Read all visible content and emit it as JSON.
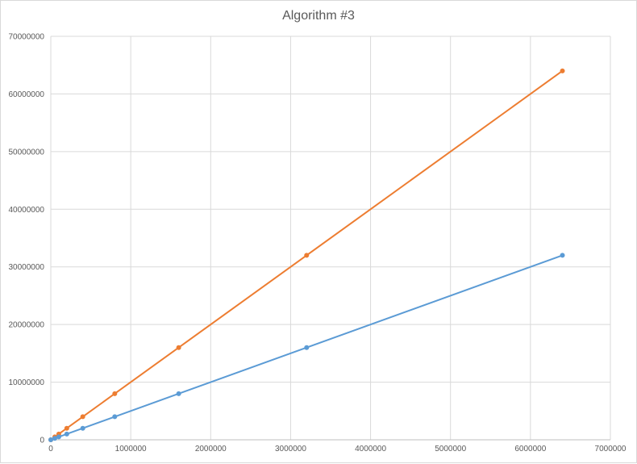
{
  "chart_data": {
    "type": "scatter",
    "title": "Algorithm #3",
    "xlabel": "",
    "ylabel": "",
    "xlim": [
      0,
      7000000
    ],
    "ylim": [
      0,
      70000000
    ],
    "x_ticks": [
      "0",
      "1000000",
      "2000000",
      "3000000",
      "4000000",
      "5000000",
      "6000000",
      "7000000"
    ],
    "y_ticks": [
      "0",
      "10000000",
      "20000000",
      "30000000",
      "40000000",
      "50000000",
      "60000000",
      "70000000"
    ],
    "grid": true,
    "legend": "none",
    "series": [
      {
        "color": "#ed7d31",
        "x": [
          0,
          50000,
          100000,
          200000,
          400000,
          800000,
          1600000,
          3200000,
          6400000
        ],
        "y": [
          0,
          500000,
          1000000,
          2000000,
          4000000,
          8000000,
          16000000,
          32000000,
          64000000
        ]
      },
      {
        "color": "#5b9bd5",
        "x": [
          0,
          50000,
          100000,
          200000,
          400000,
          800000,
          1600000,
          3200000,
          6400000
        ],
        "y": [
          0,
          250000,
          500000,
          1000000,
          2000000,
          4000000,
          8000000,
          16000000,
          32000000
        ]
      }
    ]
  }
}
